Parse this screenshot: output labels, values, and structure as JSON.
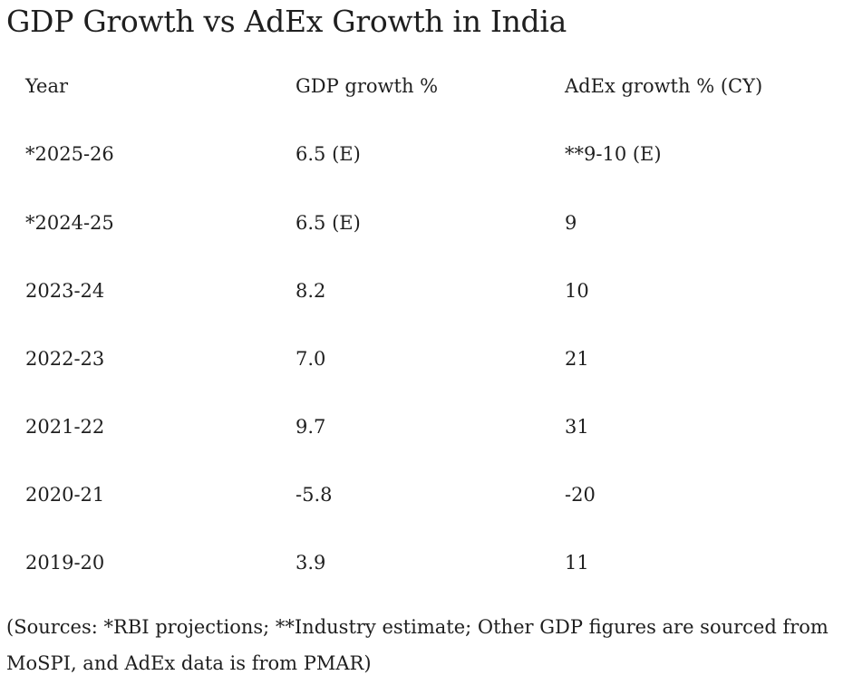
{
  "title": "GDP Growth vs AdEx Growth in India",
  "table": {
    "headers": [
      "Year",
      "GDP growth %",
      "AdEx growth % (CY)"
    ],
    "rows": [
      [
        "*2025-26",
        "6.5 (E)",
        "**9-10 (E)"
      ],
      [
        "*2024-25",
        "6.5 (E)",
        "9"
      ],
      [
        "2023-24",
        "8.2",
        "10"
      ],
      [
        "2022-23",
        "7.0",
        "21"
      ],
      [
        "2021-22",
        "9.7",
        "31"
      ],
      [
        "2020-21",
        "-5.8",
        "-20"
      ],
      [
        "2019-20",
        "3.9",
        "11"
      ]
    ]
  },
  "footnote": "(Sources: *RBI projections; **Industry estimate; Other GDP figures are sourced from MoSPI, and AdEx data is from PMAR)"
}
